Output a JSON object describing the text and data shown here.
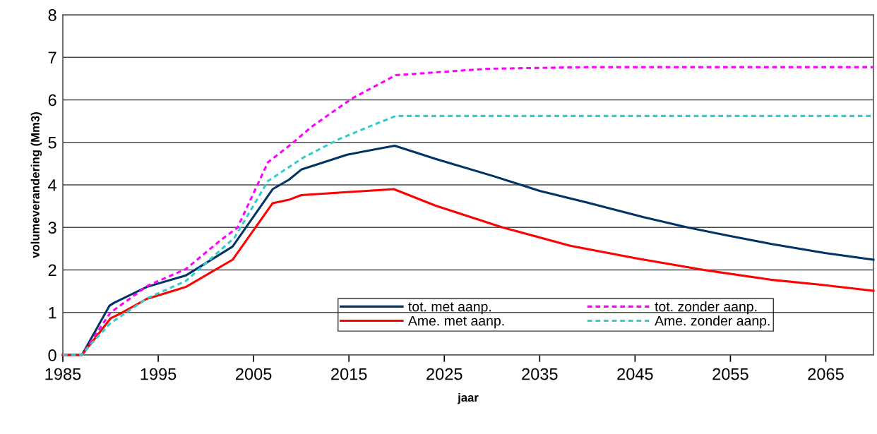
{
  "chart_data": {
    "type": "line",
    "xlabel": "jaar",
    "ylabel": "volumeverandering (Mm3)",
    "xlim": [
      1985,
      2070
    ],
    "xticks": [
      1985,
      1995,
      2005,
      2015,
      2025,
      2035,
      2045,
      2055,
      2065
    ],
    "ylim": [
      0,
      8
    ],
    "yticks": [
      0,
      1,
      2,
      3,
      4,
      5,
      6,
      7,
      8
    ],
    "grid": "y",
    "legend": "bottom right",
    "marker": "none",
    "series": [
      {
        "name": "tot. met aanp.",
        "color": "#003366",
        "line_style": "solid",
        "x": [
          1985,
          1987,
          1989.9,
          1990.4,
          1993.8,
          1997.9,
          2002.8,
          2007.0,
          2008.7,
          2010.0,
          2014.8,
          2018.3,
          2019.8,
          2024.1,
          2030.1,
          2035.0,
          2039.9,
          2045.9,
          2050.5,
          2054.7,
          2059.3,
          2064.9,
          2070
        ],
        "values": [
          0,
          0,
          1.16,
          1.23,
          1.6,
          1.87,
          2.55,
          3.9,
          4.12,
          4.36,
          4.71,
          4.86,
          4.92,
          4.61,
          4.21,
          3.86,
          3.59,
          3.24,
          3.0,
          2.81,
          2.61,
          2.4,
          2.24
        ]
      },
      {
        "name": "tot. zonder aanp.",
        "color": "#ff00ff",
        "line_style": "dashed",
        "x": [
          1985,
          1987,
          1990.0,
          1990.7,
          1993.9,
          1997.9,
          2001.6,
          2003.3,
          2006.5,
          2008.9,
          2011.1,
          2015.3,
          2019.9,
          2029.4,
          2039.9,
          2070
        ],
        "values": [
          0,
          0,
          1.0,
          1.11,
          1.63,
          2.02,
          2.71,
          2.99,
          4.53,
          4.95,
          5.37,
          6.03,
          6.58,
          6.73,
          6.77,
          6.77
        ]
      },
      {
        "name": "Ame. met aanp.",
        "color": "#ff0000",
        "line_style": "solid",
        "x": [
          1985,
          1987,
          1990.0,
          1991.0,
          1993.8,
          1997.9,
          2002.8,
          2007.0,
          2008.7,
          2010.0,
          2018.3,
          2019.7,
          2024.1,
          2031.1,
          2038.2,
          2045.2,
          2052.2,
          2059.2,
          2064.5,
          2070
        ],
        "values": [
          0,
          0,
          0.86,
          0.97,
          1.32,
          1.6,
          2.24,
          3.57,
          3.65,
          3.76,
          3.88,
          3.9,
          3.51,
          3.0,
          2.57,
          2.27,
          2.0,
          1.77,
          1.65,
          1.51
        ]
      },
      {
        "name": "Ame. zonder aanp.",
        "color": "#33cccc",
        "line_style": "dashed",
        "x": [
          1985,
          1987,
          1987.8,
          1990.0,
          1993.9,
          1997.9,
          2003.0,
          2006.5,
          2010.2,
          2013.8,
          2017.0,
          2019.9,
          2070
        ],
        "values": [
          0,
          0,
          0.22,
          0.75,
          1.34,
          1.74,
          2.76,
          4.09,
          4.64,
          5.06,
          5.36,
          5.62,
          5.62
        ]
      }
    ]
  }
}
